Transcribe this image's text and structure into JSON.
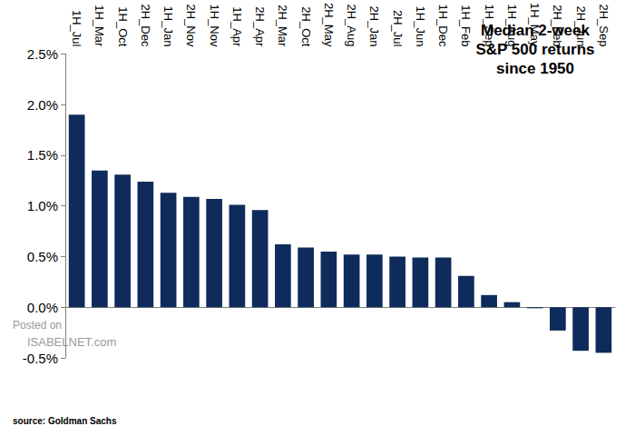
{
  "chart_data": {
    "type": "bar",
    "title": "Median 2-week\nS&P 500 returns\nsince 1950",
    "categories": [
      "1H_Jul",
      "1H_Mar",
      "1H_Oct",
      "2H_Dec",
      "1H_Jan",
      "2H_Nov",
      "1H_Nov",
      "1H_Apr",
      "2H_Apr",
      "2H_Mar",
      "2H_Oct",
      "2H_May",
      "2H_Aug",
      "2H_Jan",
      "2H_Jul",
      "1H_Jun",
      "1H_Dec",
      "1H_Feb",
      "1H_Sep",
      "1H_Aug",
      "1H_May",
      "2H_Feb",
      "2H_Jun",
      "2H_Sep"
    ],
    "values": [
      1.9,
      1.35,
      1.31,
      1.24,
      1.13,
      1.09,
      1.07,
      1.01,
      0.96,
      0.62,
      0.59,
      0.55,
      0.52,
      0.52,
      0.5,
      0.49,
      0.49,
      0.31,
      0.12,
      0.05,
      -0.01,
      -0.23,
      -0.43,
      -0.45
    ],
    "color": "#0f2b5b",
    "ylim": [
      -0.5,
      2.5
    ],
    "yticks": [
      {
        "value": -0.5,
        "label": "-0.5%"
      },
      {
        "value": 0,
        "label": "0.0%"
      },
      {
        "value": 0.5,
        "label": "0.5%"
      },
      {
        "value": 1,
        "label": "1.0%"
      },
      {
        "value": 1.5,
        "label": "1.5%"
      },
      {
        "value": 2,
        "label": "2.0%"
      },
      {
        "value": 2.5,
        "label": "2.5%"
      }
    ],
    "grid": false,
    "annotations": [
      "Posted on",
      "ISABELNET.com",
      "source: Goldman Sachs"
    ]
  }
}
